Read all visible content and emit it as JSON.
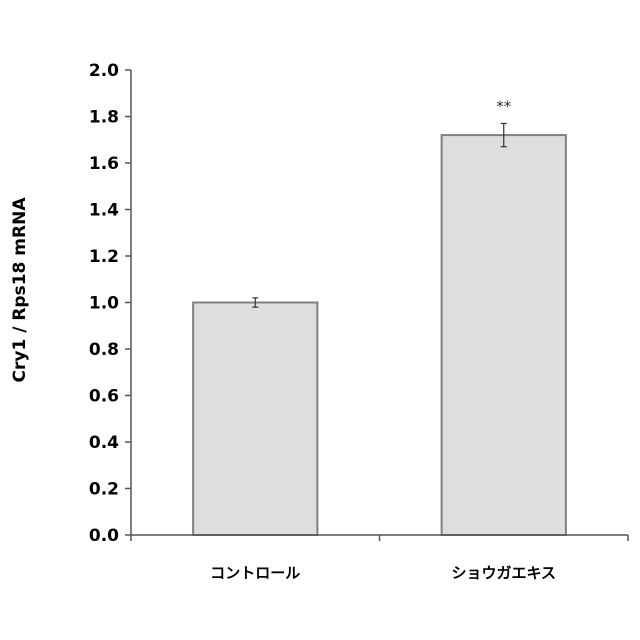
{
  "chart_data": {
    "type": "bar",
    "categories": [
      "コントロール",
      "ショウガエキス"
    ],
    "values": [
      1.0,
      1.72
    ],
    "errors": [
      0.02,
      0.05
    ],
    "annotations": [
      "",
      "**"
    ],
    "ylabel": "Cry1 / Rps18 mRNA",
    "ylim": [
      0,
      2.0
    ],
    "yticks": [
      "0.0",
      "0.2",
      "0.4",
      "0.6",
      "0.8",
      "1.0",
      "1.2",
      "1.4",
      "1.6",
      "1.8",
      "2.0"
    ],
    "grid": false,
    "bar_color": "#dedede",
    "bar_edge_color": "#808080"
  }
}
